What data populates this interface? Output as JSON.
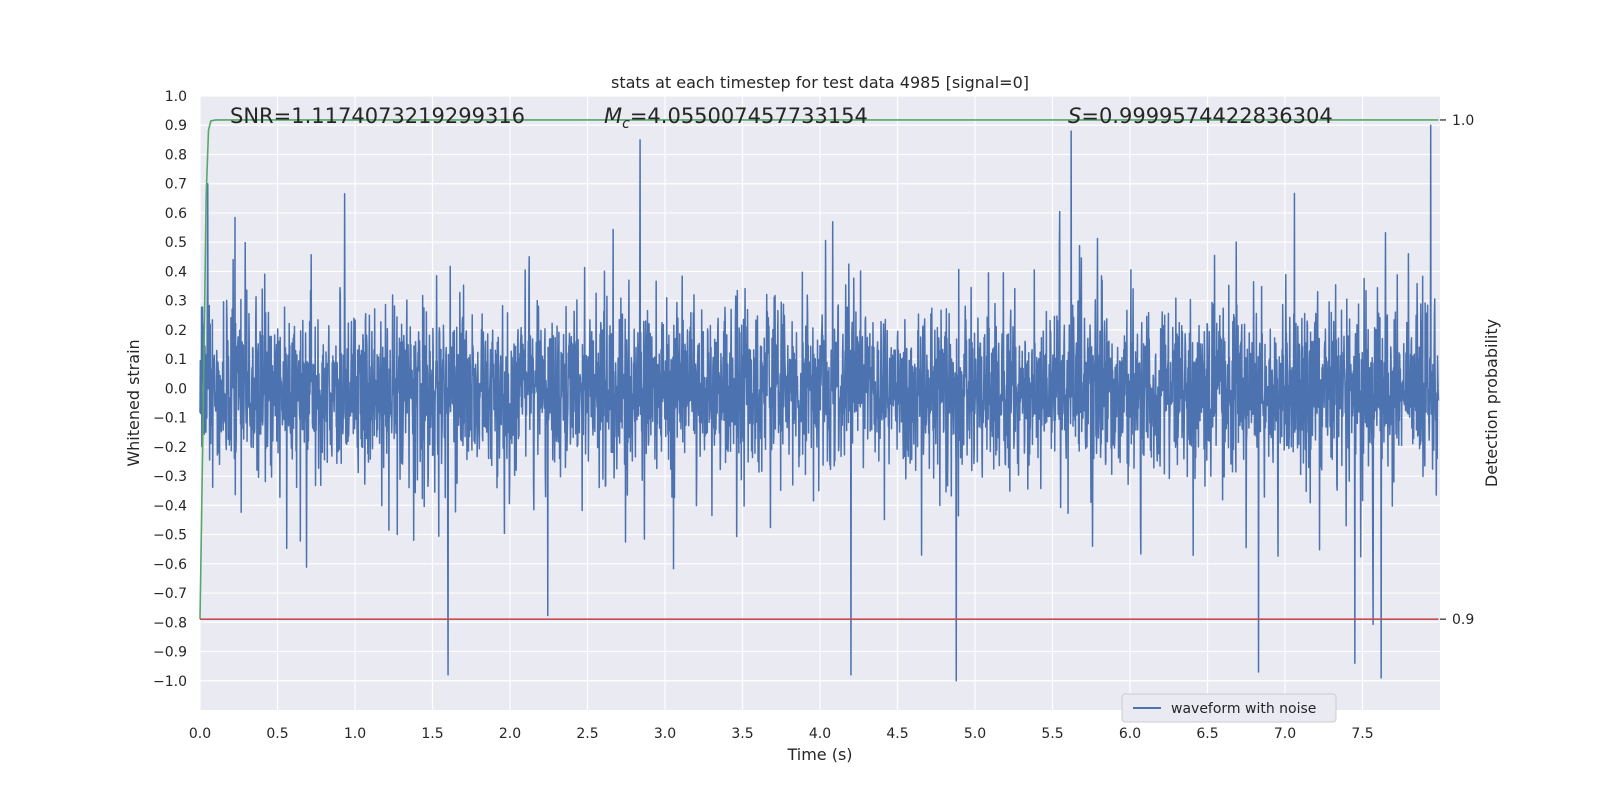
{
  "chart_data": {
    "type": "line",
    "title": "stats at each timestep for test data 4985 [signal=0]",
    "xlabel": "Time (s)",
    "ylabel": "Whitened strain",
    "ylabel_right": "Detection probability",
    "xlim": [
      0.0,
      8.0
    ],
    "ylim": [
      -1.1,
      1.0
    ],
    "ylim_right": [
      0.8818,
      1.0048
    ],
    "x_ticks": [
      "0.0",
      "0.5",
      "1.0",
      "1.5",
      "2.0",
      "2.5",
      "3.0",
      "3.5",
      "4.0",
      "4.5",
      "5.0",
      "5.5",
      "6.0",
      "6.5",
      "7.0",
      "7.5"
    ],
    "y_ticks": [
      "1.0",
      "0.9",
      "0.8",
      "0.7",
      "0.6",
      "0.5",
      "0.4",
      "0.3",
      "0.2",
      "0.1",
      "0.0",
      "−0.1",
      "−0.2",
      "−0.3",
      "−0.4",
      "−0.5",
      "−0.6",
      "−0.7",
      "−0.8",
      "−0.9",
      "−1.0"
    ],
    "y_ticks_right": [
      "1.0",
      "0.9"
    ],
    "grid": true,
    "legend": {
      "position": "lower-right",
      "entries": [
        "waveform with noise"
      ]
    },
    "annotations": {
      "snr": "SNR=1.1174073219299316",
      "mc_symbol": "M",
      "mc_sub": "c",
      "mc_value": "=4.055007457733154",
      "s_symbol": "S",
      "s_value": "=0.9999574422836304"
    },
    "series": [
      {
        "name": "waveform with noise",
        "color": "#4c72b0",
        "duration": 7.99,
        "sample_count": 4000,
        "envelope": {
          "typical_low": -0.3,
          "typical_high": 0.4,
          "min": -1.0,
          "max": 0.9
        },
        "extremes": [
          {
            "x": 0.05,
            "y": 0.7
          },
          {
            "x": 1.6,
            "y": -0.98
          },
          {
            "x": 2.84,
            "y": 0.85
          },
          {
            "x": 4.2,
            "y": -0.98
          },
          {
            "x": 4.88,
            "y": -1.0
          },
          {
            "x": 5.62,
            "y": 0.88
          },
          {
            "x": 6.83,
            "y": -0.97
          },
          {
            "x": 7.45,
            "y": -0.94
          },
          {
            "x": 7.62,
            "y": -0.99
          },
          {
            "x": 7.94,
            "y": 0.9
          }
        ]
      },
      {
        "color": "#55a868",
        "axis": "right",
        "x": [
          0.0,
          0.02,
          0.04,
          0.055,
          0.07,
          0.1,
          7.99
        ],
        "y": [
          0.9,
          0.94,
          0.985,
          0.998,
          0.9998,
          1.0,
          1.0
        ]
      },
      {
        "color": "#c44e52",
        "axis": "right",
        "x": [
          0.0,
          7.99
        ],
        "y": [
          0.9,
          0.9
        ]
      }
    ]
  }
}
